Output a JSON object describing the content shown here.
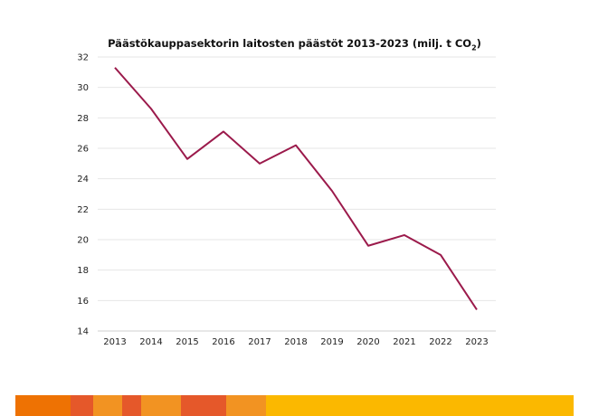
{
  "chart_data": {
    "type": "line",
    "title": "Päästökauppasektorin laitosten päästöt 2013-2023 (milj. t CO",
    "title_subscript": "2",
    "title_suffix": ")",
    "xlabel": "",
    "ylabel": "",
    "categories": [
      "2013",
      "2014",
      "2015",
      "2016",
      "2017",
      "2018",
      "2019",
      "2020",
      "2021",
      "2022",
      "2023"
    ],
    "values": [
      31.3,
      28.6,
      25.3,
      27.1,
      25.0,
      26.2,
      23.2,
      19.6,
      20.3,
      19.0,
      15.4
    ],
    "ylim": [
      14,
      32
    ],
    "yticks": [
      14,
      16,
      18,
      20,
      22,
      24,
      26,
      28,
      30,
      32
    ],
    "grid": true,
    "legend": "none",
    "line_color": "#9b1a4b"
  },
  "footer_stripes": [
    "#ee7203",
    "#e5582a",
    "#f29322",
    "#e5582a",
    "#f29322",
    "#e5582a",
    "#f29322",
    "#fbb800"
  ]
}
